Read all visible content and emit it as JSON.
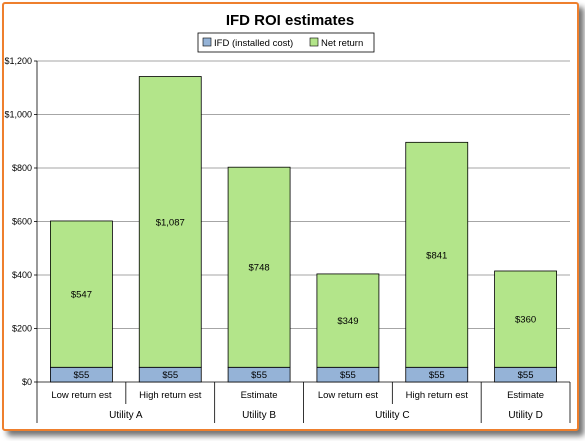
{
  "colors": {
    "frame_border": "#ee7f2d",
    "ifd_fill": "#95b3d7",
    "net_fill": "#b3e58a",
    "bar_stroke": "#000000",
    "grid": "#888888"
  },
  "chart_data": {
    "type": "bar",
    "stacked": true,
    "title": "IFD ROI estimates",
    "legend_position": "top-center",
    "grid": true,
    "categories": [
      "Low return est",
      "High return est",
      "Estimate",
      "Low return est",
      "High return est",
      "Estimate"
    ],
    "groups": [
      {
        "name": "Utility A",
        "span": 2
      },
      {
        "name": "Utility B",
        "span": 1
      },
      {
        "name": "Utility C",
        "span": 2
      },
      {
        "name": "Utility D",
        "span": 1
      }
    ],
    "series": [
      {
        "name": "IFD (installed cost)",
        "color": "#95b3d7",
        "values": [
          55,
          55,
          55,
          55,
          55,
          55
        ],
        "labels": [
          "$55",
          "$55",
          "$55",
          "$55",
          "$55",
          "$55"
        ]
      },
      {
        "name": "Net return",
        "color": "#b3e58a",
        "values": [
          547,
          1087,
          748,
          349,
          841,
          360
        ],
        "labels": [
          "$547",
          "$1,087",
          "$748",
          "$349",
          "$841",
          "$360"
        ]
      }
    ],
    "ylim": [
      0,
      1200
    ],
    "yticks": [
      0,
      200,
      400,
      600,
      800,
      1000,
      1200
    ],
    "ytick_labels": [
      "$0",
      "$200",
      "$400",
      "$600",
      "$800",
      "$1,000",
      "$1,200"
    ]
  }
}
